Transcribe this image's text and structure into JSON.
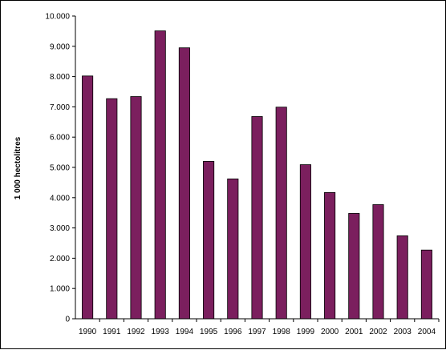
{
  "chart_data": {
    "type": "bar",
    "title": "",
    "xlabel": "",
    "ylabel": "1 000 hectolitres",
    "ylim": [
      0,
      10000
    ],
    "yticks": [
      0,
      1000,
      2000,
      3000,
      4000,
      5000,
      6000,
      7000,
      8000,
      9000,
      10000
    ],
    "ytick_labels": [
      "0",
      "1.000",
      "2.000",
      "3.000",
      "4.000",
      "5.000",
      "6.000",
      "7.000",
      "8.000",
      "9.000",
      "10.000"
    ],
    "categories": [
      "1990",
      "1991",
      "1992",
      "1993",
      "1994",
      "1995",
      "1996",
      "1997",
      "1998",
      "1999",
      "2000",
      "2001",
      "2002",
      "2003",
      "2004"
    ],
    "values": [
      8020,
      7270,
      7340,
      9510,
      8950,
      5200,
      4620,
      6680,
      6990,
      5090,
      4170,
      3480,
      3770,
      2740,
      2270
    ],
    "grid": false,
    "legend": "none",
    "bar_color": "#7B1F5E"
  }
}
